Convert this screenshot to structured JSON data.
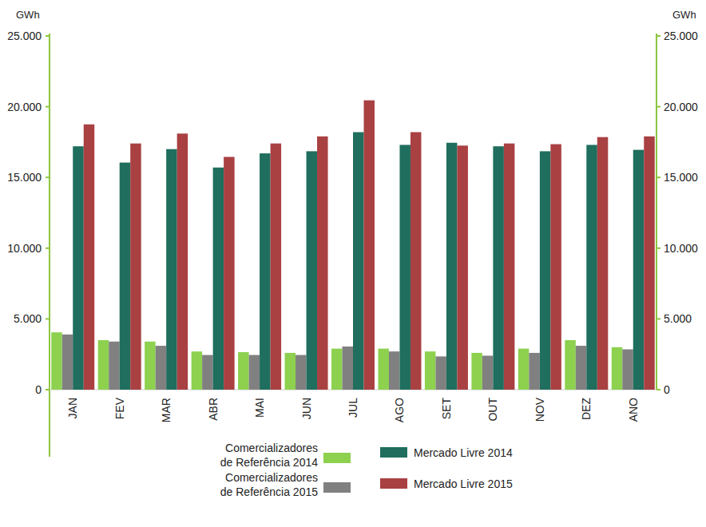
{
  "chart_data": {
    "type": "bar",
    "y_label": "GWh",
    "y2_label": "GWh",
    "categories": [
      "JAN",
      "FEV",
      "MAR",
      "ABR",
      "MAI",
      "JUN",
      "JUL",
      "AGO",
      "SET",
      "OUT",
      "NOV",
      "DEZ",
      "ANO"
    ],
    "series": [
      {
        "name": "Comercializadores de Referência 2014",
        "color": "#8dd14f",
        "values": [
          4050,
          3500,
          3400,
          2700,
          2650,
          2600,
          2900,
          2900,
          2700,
          2600,
          2900,
          3500,
          3000
        ]
      },
      {
        "name": "Comercializadores de Referência 2015",
        "color": "#808080",
        "values": [
          3900,
          3400,
          3100,
          2450,
          2450,
          2450,
          3050,
          2700,
          2350,
          2400,
          2600,
          3100,
          2850
        ]
      },
      {
        "name": "Mercado Livre 2014",
        "color": "#1f6e5e",
        "values": [
          17200,
          16050,
          17000,
          15700,
          16700,
          16850,
          18200,
          17300,
          17450,
          17200,
          16850,
          17300,
          16950
        ]
      },
      {
        "name": "Mercado Livre 2015",
        "color": "#a94042",
        "values": [
          18750,
          17400,
          18100,
          16450,
          17400,
          17900,
          20450,
          18200,
          17250,
          17400,
          17350,
          17850,
          17900
        ]
      }
    ],
    "ylim": [
      0,
      25000
    ],
    "yticks": [
      0,
      {
        "value": 5000,
        "label": "5.000"
      },
      {
        "value": 10000,
        "label": "10.000"
      },
      {
        "value": 15000,
        "label": "15.000"
      },
      {
        "value": 20000,
        "label": "20.000"
      },
      {
        "value": 25000,
        "label": "25.000"
      }
    ],
    "y2lim": [
      0,
      25000
    ],
    "y2ticks": [
      0,
      {
        "value": 5000,
        "label": "5.000"
      },
      {
        "value": 10000,
        "label": "10.000"
      },
      {
        "value": 15000,
        "label": "15.000"
      },
      {
        "value": 20000,
        "label": "20.000"
      },
      {
        "value": 25000,
        "label": "25.000"
      }
    ],
    "grid": false,
    "legend": "bottom"
  }
}
